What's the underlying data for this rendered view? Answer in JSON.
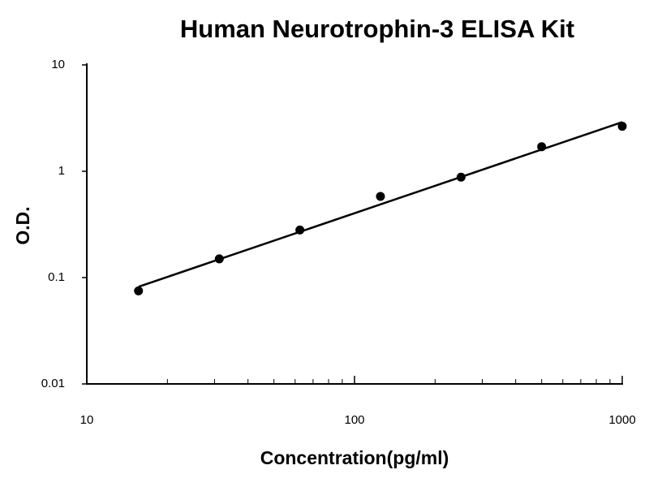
{
  "chart_data": {
    "type": "scatter",
    "title": "Human Neurotrophin-3 ELISA Kit",
    "x_label": "Concentration(pg/ml)",
    "y_label": "O.D.",
    "x": [
      15.6,
      31.25,
      62.5,
      125,
      250,
      500,
      1000
    ],
    "values": [
      0.075,
      0.15,
      0.28,
      0.58,
      0.88,
      1.7,
      2.65
    ],
    "color": "#000000",
    "fit_line": {
      "x": [
        15.6,
        1000
      ],
      "values": [
        0.082,
        2.9
      ]
    },
    "xlim": [
      10,
      1000
    ],
    "ylim": [
      0.01,
      10
    ],
    "xticks": [
      10,
      100,
      1000
    ],
    "yticks": [
      0.01,
      0.1,
      1,
      10
    ],
    "xminorticks": [
      20,
      30,
      40,
      50,
      60,
      70,
      80,
      90,
      200,
      300,
      400,
      500,
      600,
      700,
      800,
      900
    ],
    "xscale": "log",
    "yscale": "log",
    "grid": false
  }
}
